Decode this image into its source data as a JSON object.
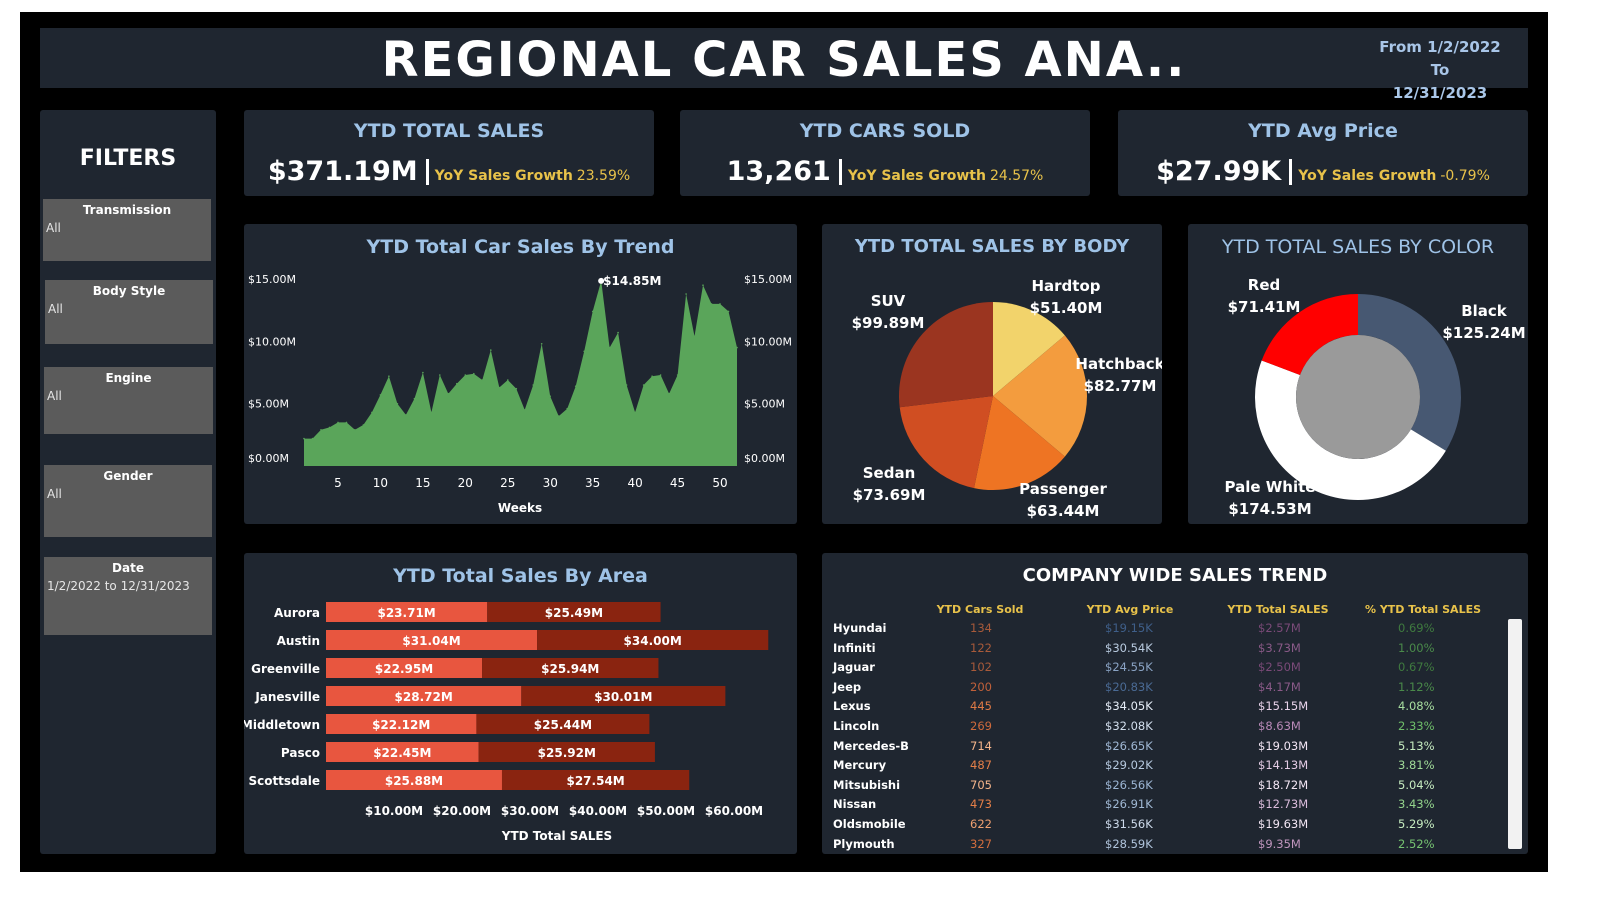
{
  "header": {
    "title": "REGIONAL CAR SALES ANA..",
    "date_range_line1": "From 1/2/2022  To",
    "date_range_line2": "12/31/2023"
  },
  "filters": {
    "title": "FILTERS",
    "items": [
      {
        "label": "Transmission",
        "value": "All"
      },
      {
        "label": "Body Style",
        "value": "All"
      },
      {
        "label": "Engine",
        "value": "All"
      },
      {
        "label": "Gender",
        "value": "All"
      },
      {
        "label": "Date",
        "value": "1/2/2022 to 12/31/2023"
      }
    ]
  },
  "kpis": [
    {
      "title": "YTD TOTAL SALES",
      "value": "$371.19M",
      "growth_label": "YoY Sales Growth",
      "growth_value": "23.59%"
    },
    {
      "title": "YTD CARS SOLD",
      "value": "13,261",
      "growth_label": "YoY Sales Growth",
      "growth_value": "24.57%"
    },
    {
      "title": "YTD Avg Price",
      "value": "$27.99K",
      "growth_label": "YoY Sales Growth",
      "growth_value": "-0.79%"
    }
  ],
  "trend_chart": {
    "title": "YTD Total Car Sales By Trend",
    "xlabel": "Weeks",
    "peak_label": "$14.85M",
    "y_ticks": [
      "$15.00M",
      "$10.00M",
      "$5.00M",
      "$0.00M"
    ],
    "x_ticks": [
      "5",
      "10",
      "15",
      "20",
      "25",
      "30",
      "35",
      "40",
      "45",
      "50"
    ],
    "color": "#5aa55a"
  },
  "body_chart": {
    "title": "YTD TOTAL SALES BY BODY",
    "slices": [
      {
        "name": "Hardtop",
        "value_label": "$51.40M",
        "value": 51.4,
        "color": "#f2d36b"
      },
      {
        "name": "Hatchback",
        "value_label": "$82.77M",
        "value": 82.77,
        "color": "#f39c3e"
      },
      {
        "name": "Passenger",
        "value_label": "$63.44M",
        "value": 63.44,
        "color": "#ee7423"
      },
      {
        "name": "Sedan",
        "value_label": "$73.69M",
        "value": 73.69,
        "color": "#d04e22"
      },
      {
        "name": "SUV",
        "value_label": "$99.89M",
        "value": 99.89,
        "color": "#9b3520"
      }
    ]
  },
  "color_chart": {
    "title": "YTD TOTAL SALES BY COLOR",
    "slices": [
      {
        "name": "Black",
        "value_label": "$125.24M",
        "value": 125.24,
        "color": "#475872"
      },
      {
        "name": "Pale White",
        "value_label": "$174.53M",
        "value": 174.53,
        "color": "#ffffff"
      },
      {
        "name": "Red",
        "value_label": "$71.41M",
        "value": 71.41,
        "color": "#ff0000"
      }
    ],
    "hole_color": "#9a9a9a"
  },
  "area_chart": {
    "title": "YTD Total Sales By Area",
    "xlabel": "YTD Total SALES",
    "x_ticks": [
      "$10.00M",
      "$20.00M",
      "$30.00M",
      "$40.00M",
      "$50.00M",
      "$60.00M"
    ],
    "color_2022": "#e8563f",
    "color_2023": "#8a2410"
  },
  "table": {
    "title": "COMPANY WIDE SALES TREND",
    "headers": [
      "YTD Cars Sold",
      "YTD Avg Price",
      "YTD Total SALES",
      "% YTD Total SALES"
    ],
    "rows": [
      {
        "company": "Hyundai",
        "cars": "134",
        "avg": "$19.15K",
        "total": "$2.57M",
        "pct": "0.69%",
        "cars_c": "#a85a3a",
        "avg_c": "#3f5f8a",
        "total_c": "#7a4a78",
        "pct_c": "#3f7a3f"
      },
      {
        "company": "Infiniti",
        "cars": "122",
        "avg": "$30.54K",
        "total": "$3.73M",
        "pct": "1.00%",
        "cars_c": "#a85a3a",
        "avg_c": "#b9cbe0",
        "total_c": "#8a5a88",
        "pct_c": "#4a8a4a"
      },
      {
        "company": "Jaguar",
        "cars": "102",
        "avg": "$24.55K",
        "total": "$2.50M",
        "pct": "0.67%",
        "cars_c": "#a85a3a",
        "avg_c": "#8aa3c4",
        "total_c": "#7a4a78",
        "pct_c": "#3f7a3f"
      },
      {
        "company": "Jeep",
        "cars": "200",
        "avg": "$20.83K",
        "total": "$4.17M",
        "pct": "1.12%",
        "cars_c": "#c0603a",
        "avg_c": "#4a6a94",
        "total_c": "#8a5a88",
        "pct_c": "#4a8a4a"
      },
      {
        "company": "Lexus",
        "cars": "445",
        "avg": "$34.05K",
        "total": "$15.15M",
        "pct": "4.08%",
        "cars_c": "#e07a45",
        "avg_c": "#e6eef8",
        "total_c": "#e8d3ea",
        "pct_c": "#a8dfa0"
      },
      {
        "company": "Lincoln",
        "cars": "269",
        "avg": "$32.08K",
        "total": "$8.63M",
        "pct": "2.33%",
        "cars_c": "#cf6a3c",
        "avg_c": "#d3dfee",
        "total_c": "#b98ab8",
        "pct_c": "#6fbf6a"
      },
      {
        "company": "Mercedes-B",
        "cars": "714",
        "avg": "$26.65K",
        "total": "$19.03M",
        "pct": "5.13%",
        "cars_c": "#f4b58b",
        "avg_c": "#9fb7d4",
        "total_c": "#f3e6f4",
        "pct_c": "#c6ecc0"
      },
      {
        "company": "Mercury",
        "cars": "487",
        "avg": "$29.02K",
        "total": "$14.13M",
        "pct": "3.81%",
        "cars_c": "#e57f48",
        "avg_c": "#b6c9df",
        "total_c": "#e3cbe4",
        "pct_c": "#a0db98"
      },
      {
        "company": "Mitsubishi",
        "cars": "705",
        "avg": "$26.56K",
        "total": "$18.72M",
        "pct": "5.04%",
        "cars_c": "#f4b58b",
        "avg_c": "#9cb5d3",
        "total_c": "#f3e6f4",
        "pct_c": "#c6ecc0"
      },
      {
        "company": "Nissan",
        "cars": "473",
        "avg": "$26.91K",
        "total": "$12.73M",
        "pct": "3.43%",
        "cars_c": "#e57f48",
        "avg_c": "#a1b9d5",
        "total_c": "#dbbcdc",
        "pct_c": "#94d48c"
      },
      {
        "company": "Oldsmobile",
        "cars": "622",
        "avg": "$31.56K",
        "total": "$19.63M",
        "pct": "5.29%",
        "cars_c": "#f0a070",
        "avg_c": "#cddaeb",
        "total_c": "#f3e6f4",
        "pct_c": "#c6ecc0"
      },
      {
        "company": "Plymouth",
        "cars": "327",
        "avg": "$28.59K",
        "total": "$9.35M",
        "pct": "2.52%",
        "cars_c": "#d46e3e",
        "avg_c": "#b0c4dc",
        "total_c": "#c096be",
        "pct_c": "#76c371"
      }
    ]
  },
  "chart_data": [
    {
      "type": "area",
      "title": "YTD Total Car Sales By Trend",
      "xlabel": "Weeks",
      "ylabel": "",
      "xlim": [
        1,
        52
      ],
      "ylim": [
        0,
        15
      ],
      "x": [
        1,
        2,
        3,
        4,
        5,
        6,
        7,
        8,
        9,
        10,
        11,
        12,
        13,
        14,
        15,
        16,
        17,
        18,
        19,
        20,
        21,
        22,
        23,
        24,
        25,
        26,
        27,
        28,
        29,
        30,
        31,
        32,
        33,
        34,
        35,
        36,
        37,
        38,
        39,
        40,
        41,
        42,
        43,
        44,
        45,
        46,
        47,
        48,
        49,
        50,
        51,
        52
      ],
      "values": [
        2.2,
        2.2,
        2.9,
        3.1,
        3.5,
        3.5,
        2.9,
        3.3,
        4.3,
        5.7,
        7.2,
        5.0,
        4.1,
        5.4,
        7.5,
        4.3,
        7.3,
        5.8,
        6.6,
        7.3,
        7.4,
        6.9,
        9.3,
        6.3,
        6.9,
        6.2,
        4.5,
        6.5,
        9.8,
        5.6,
        4.0,
        4.6,
        6.4,
        9.2,
        12.4,
        14.85,
        9.5,
        10.7,
        6.5,
        4.3,
        6.5,
        7.2,
        7.3,
        5.8,
        7.3,
        13.8,
        10.4,
        14.5,
        13.0,
        13.0,
        12.4,
        9.5
      ],
      "unit": "$M",
      "peak_label": "$14.85M",
      "grid": false
    },
    {
      "type": "pie",
      "title": "YTD TOTAL SALES BY BODY",
      "categories": [
        "Hardtop",
        "Hatchback",
        "Passenger",
        "Sedan",
        "SUV"
      ],
      "values": [
        51.4,
        82.77,
        63.44,
        73.69,
        99.89
      ],
      "unit": "$M"
    },
    {
      "type": "pie",
      "title": "YTD TOTAL SALES BY COLOR",
      "categories": [
        "Black",
        "Pale White",
        "Red"
      ],
      "values": [
        125.24,
        174.53,
        71.41
      ],
      "unit": "$M",
      "donut": true
    },
    {
      "type": "bar",
      "title": "YTD Total Sales By Area",
      "orientation": "horizontal",
      "stacked": true,
      "xlabel": "YTD Total SALES",
      "xlim": [
        0,
        65
      ],
      "categories": [
        "Aurora",
        "Austin",
        "Greenville",
        "Janesville",
        "Middletown",
        "Pasco",
        "Scottsdale"
      ],
      "series": [
        {
          "values": [
            23.71,
            31.04,
            22.95,
            28.72,
            22.12,
            22.45,
            25.88
          ],
          "labels": [
            "$23.71M",
            "$31.04M",
            "$22.95M",
            "$28.72M",
            "$22.12M",
            "$22.45M",
            "$25.88M"
          ]
        },
        {
          "values": [
            25.49,
            34.0,
            25.94,
            30.01,
            25.44,
            25.92,
            27.54
          ],
          "labels": [
            "$25.49M",
            "$34.00M",
            "$25.94M",
            "$30.01M",
            "$25.44M",
            "$25.92M",
            "$27.54M"
          ]
        }
      ],
      "unit": "$M"
    },
    {
      "type": "table",
      "title": "COMPANY WIDE SALES TREND",
      "columns": [
        "",
        "YTD Cars Sold",
        "YTD Avg Price",
        "YTD Total SALES",
        "% YTD Total SALES"
      ],
      "rows": [
        [
          "Hyundai",
          "134",
          "$19.15K",
          "$2.57M",
          "0.69%"
        ],
        [
          "Infiniti",
          "122",
          "$30.54K",
          "$3.73M",
          "1.00%"
        ],
        [
          "Jaguar",
          "102",
          "$24.55K",
          "$2.50M",
          "0.67%"
        ],
        [
          "Jeep",
          "200",
          "$20.83K",
          "$4.17M",
          "1.12%"
        ],
        [
          "Lexus",
          "445",
          "$34.05K",
          "$15.15M",
          "4.08%"
        ],
        [
          "Lincoln",
          "269",
          "$32.08K",
          "$8.63M",
          "2.33%"
        ],
        [
          "Mercedes-B",
          "714",
          "$26.65K",
          "$19.03M",
          "5.13%"
        ],
        [
          "Mercury",
          "487",
          "$29.02K",
          "$14.13M",
          "3.81%"
        ],
        [
          "Mitsubishi",
          "705",
          "$26.56K",
          "$18.72M",
          "5.04%"
        ],
        [
          "Nissan",
          "473",
          "$26.91K",
          "$12.73M",
          "3.43%"
        ],
        [
          "Oldsmobile",
          "622",
          "$31.56K",
          "$19.63M",
          "5.29%"
        ],
        [
          "Plymouth",
          "327",
          "$28.59K",
          "$9.35M",
          "2.52%"
        ]
      ]
    }
  ]
}
